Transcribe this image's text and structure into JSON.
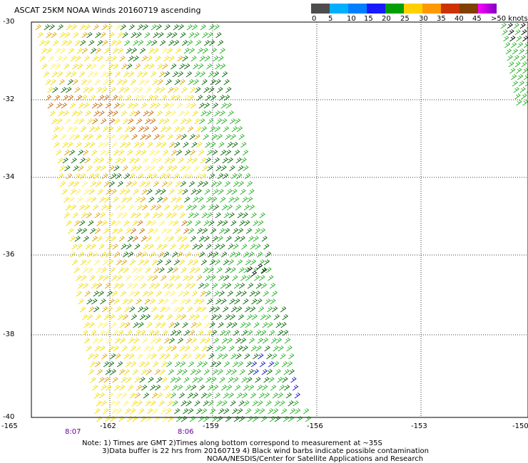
{
  "title": "ASCAT 25KM NOAA Winds 20160719 ascending",
  "legend": {
    "labels": [
      "0",
      "5",
      "10",
      "15",
      "20",
      "25",
      "30",
      "35",
      "40",
      "45",
      ">50 knots"
    ],
    "colors": [
      "#4d4d4d",
      "#00b0ff",
      "#0080ff",
      "#1a1aff",
      "#00a000",
      "#ffd000",
      "#ff9900",
      "#cc3300",
      "#804000",
      "#ff00ff",
      "#8000c0"
    ]
  },
  "axes": {
    "y_labels": [
      "-30",
      "-32",
      "-34",
      "-36",
      "-38",
      "-40"
    ],
    "x_labels": [
      "-165",
      "-162",
      "-159",
      "-156",
      "-153",
      "-150"
    ]
  },
  "time_labels": [
    "8:07",
    "8:06"
  ],
  "notes": {
    "line1": "Note: 1) Times are GMT 2)Times along bottom correspond to measurement at ~35S",
    "line2": "3)Data buffer is 22 hrs from 20160719 4) Black wind barbs indicate possible contamination",
    "line3": "NOAA/NESDIS/Center for Satellite Applications and Research"
  },
  "map_colors": {
    "yellow": "#f2dc00",
    "light_yellow": "#ffee55",
    "orange": "#e0a000",
    "dark_orange": "#c86400",
    "green": "#22b022",
    "dark_green": "#006400",
    "blue": "#1010cc",
    "black": "#000000",
    "grid": "#000000"
  }
}
